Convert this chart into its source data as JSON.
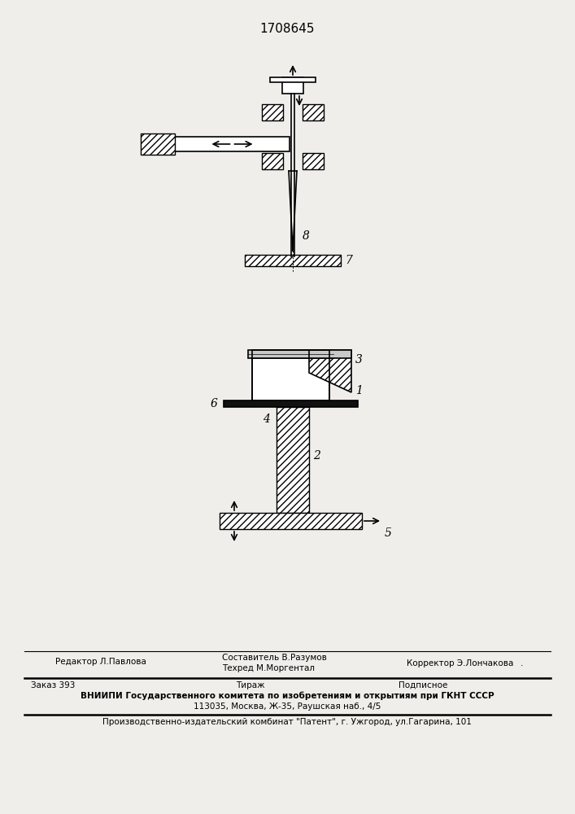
{
  "title": "1708645",
  "title_fontsize": 11,
  "bg_color": "#f0eeeb",
  "line_color": "#000000",
  "footer_line3": "ВНИИПИ Государственного комитета по изобретениям и открытиям при ГКНТ СССР",
  "footer_line4": "113035, Москва, Ж-35, Раушская наб., 4/5",
  "footer_line5": "Производственно-издательский комбинат \"Патент\", г. Ужгород, ул.Гагарина, 101"
}
